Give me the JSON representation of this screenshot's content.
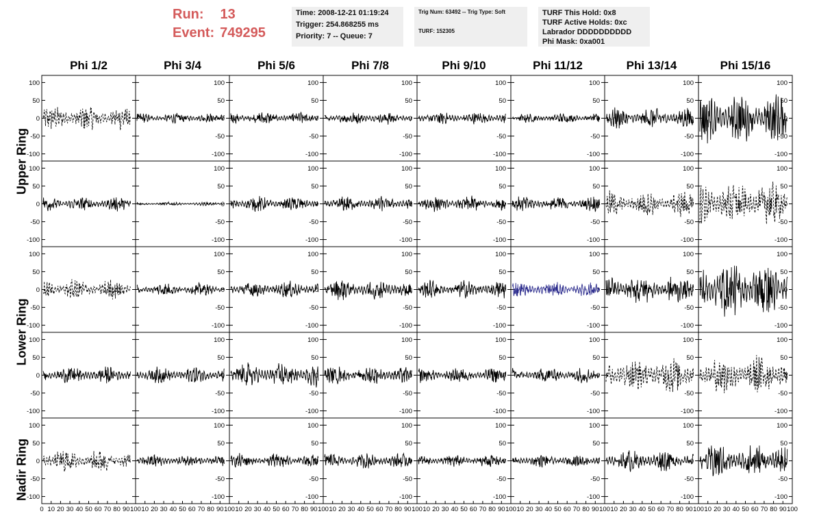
{
  "header": {
    "run_label": "Run:",
    "run_value": "13",
    "event_label": "Event:",
    "event_value": "749295"
  },
  "info": {
    "time": "Time: 2008-12-21 01:19:24",
    "trigger": "Trigger: 254.868255 ms",
    "priority": "Priority: 7 -- Queue: 7",
    "trig_num": "Trig Num: 63492 -- Trig Type: Soft",
    "turf": "TURF: 152305",
    "turf_hold": "TURF This Hold: 0x8",
    "turf_active": "TURF Active Holds: 0xc",
    "labrador": "Labrador DDDDDDDDDD",
    "phi_mask": "Phi Mask: 0xa001"
  },
  "colors": {
    "header_red": "#d45a5a",
    "trace_black": "#000000",
    "trace_blue": "#2a2a8c",
    "panel_border": "#000000"
  },
  "chart_data": {
    "type": "line",
    "columns": [
      "Phi 1/2",
      "Phi 3/4",
      "Phi 5/6",
      "Phi 7/8",
      "Phi 9/10",
      "Phi 11/12",
      "Phi 13/14",
      "Phi 15/16"
    ],
    "row_labels": [
      "Upper Ring",
      "Lower Ring",
      "Nadir Ring"
    ],
    "rows": 5,
    "ylim": [
      -120,
      120
    ],
    "xlim": [
      0,
      100
    ],
    "y_ticks": [
      "100",
      "50",
      "0",
      "-50",
      "-100"
    ],
    "x_tick_labels": [
      "0",
      "10",
      "20",
      "30",
      "40",
      "50",
      "60",
      "70",
      "80",
      "90",
      "100"
    ],
    "panels": [
      [
        {
          "amp": 30,
          "style": "dashed"
        },
        {
          "amp": 12,
          "style": "solid"
        },
        {
          "amp": 15,
          "style": "solid"
        },
        {
          "amp": 15,
          "style": "solid"
        },
        {
          "amp": 15,
          "style": "solid"
        },
        {
          "amp": 12,
          "style": "solid"
        },
        {
          "amp": 25,
          "style": "solid"
        },
        {
          "amp": 60,
          "style": "solid"
        }
      ],
      [
        {
          "amp": 18,
          "style": "solid"
        },
        {
          "amp": 4,
          "style": "solid"
        },
        {
          "amp": 18,
          "style": "solid"
        },
        {
          "amp": 18,
          "style": "solid"
        },
        {
          "amp": 18,
          "style": "solid"
        },
        {
          "amp": 18,
          "style": "solid"
        },
        {
          "amp": 30,
          "style": "dashed"
        },
        {
          "amp": 55,
          "style": "dashed"
        }
      ],
      [
        {
          "amp": 25,
          "style": "dashed"
        },
        {
          "amp": 15,
          "style": "solid"
        },
        {
          "amp": 20,
          "style": "solid"
        },
        {
          "amp": 25,
          "style": "solid"
        },
        {
          "amp": 22,
          "style": "solid"
        },
        {
          "amp": 18,
          "style": "blue"
        },
        {
          "amp": 35,
          "style": "solid"
        },
        {
          "amp": 75,
          "style": "solid"
        }
      ],
      [
        {
          "amp": 20,
          "style": "solid"
        },
        {
          "amp": 20,
          "style": "solid"
        },
        {
          "amp": 30,
          "style": "solid"
        },
        {
          "amp": 22,
          "style": "solid"
        },
        {
          "amp": 18,
          "style": "solid"
        },
        {
          "amp": 18,
          "style": "solid"
        },
        {
          "amp": 45,
          "style": "dashed"
        },
        {
          "amp": 50,
          "style": "dashed"
        }
      ],
      [
        {
          "amp": 28,
          "style": "dashed"
        },
        {
          "amp": 15,
          "style": "solid"
        },
        {
          "amp": 18,
          "style": "solid"
        },
        {
          "amp": 18,
          "style": "solid"
        },
        {
          "amp": 15,
          "style": "solid"
        },
        {
          "amp": 15,
          "style": "solid"
        },
        {
          "amp": 25,
          "style": "solid"
        },
        {
          "amp": 45,
          "style": "solid"
        }
      ]
    ]
  }
}
